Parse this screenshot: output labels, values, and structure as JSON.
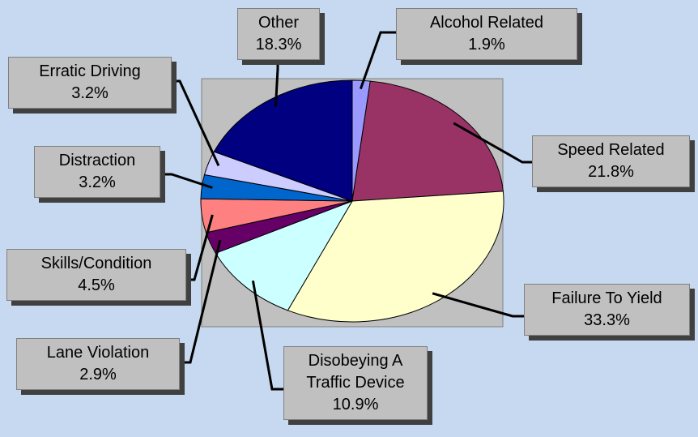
{
  "chart_data": {
    "type": "pie",
    "categories": [
      "Alcohol Related",
      "Speed Related",
      "Failure To Yield",
      "Disobeying A Traffic Device",
      "Lane Violation",
      "Skills/Condition",
      "Distraction",
      "Erratic Driving",
      "Other"
    ],
    "values": [
      1.9,
      21.8,
      33.3,
      10.9,
      2.9,
      4.5,
      3.2,
      3.2,
      18.3
    ],
    "value_labels": [
      "1.9%",
      "21.8%",
      "33.3%",
      "10.9%",
      "2.9%",
      "4.5%",
      "3.2%",
      "3.2%",
      "18.3%"
    ],
    "colors": [
      "#9999ff",
      "#993366",
      "#ffffcc",
      "#ccffff",
      "#660066",
      "#ff8080",
      "#0066cc",
      "#ccccff",
      "#000080"
    ]
  }
}
